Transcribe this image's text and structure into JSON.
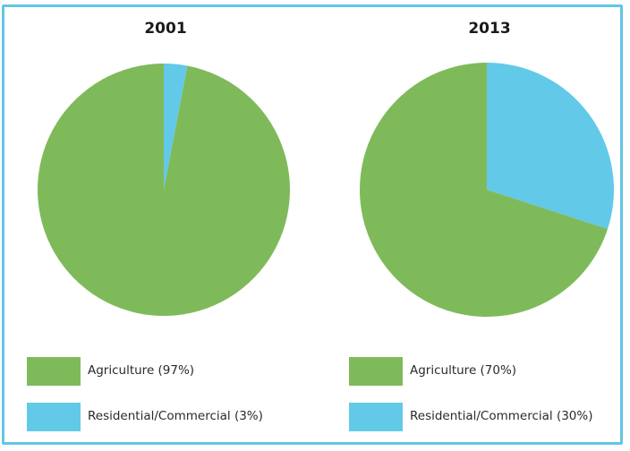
{
  "colors": {
    "agriculture": "#7fba5a",
    "residential": "#62c9e8",
    "border": "#62c6e6"
  },
  "chart_data": [
    {
      "type": "pie",
      "title": "2001",
      "slices": [
        {
          "label": "Agriculture (97%)",
          "value": 97,
          "color": "#7fba5a"
        },
        {
          "label": "Residential/Commercial (3%)",
          "value": 3,
          "color": "#62c9e8"
        }
      ],
      "legend_position": "bottom"
    },
    {
      "type": "pie",
      "title": "2013",
      "slices": [
        {
          "label": "Agriculture (70%)",
          "value": 70,
          "color": "#7fba5a"
        },
        {
          "label": "Residential/Commercial (30%)",
          "value": 30,
          "color": "#62c9e8"
        }
      ],
      "legend_position": "bottom"
    }
  ]
}
